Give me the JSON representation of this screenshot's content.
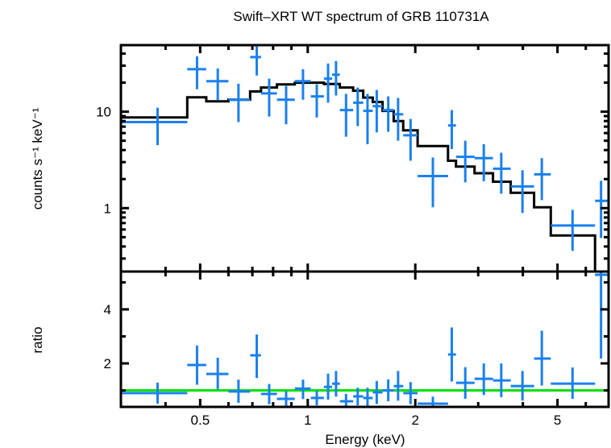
{
  "chart_data": {
    "type": "line",
    "title": "Swift–XRT WT spectrum of GRB 110731A",
    "xlabel": "Energy (keV)",
    "xscale": "log",
    "xlim": [
      0.3,
      6.95
    ],
    "xticks": [
      {
        "value": 0.5,
        "label": "0.5"
      },
      {
        "value": 1,
        "label": "1"
      },
      {
        "value": 2,
        "label": "2"
      },
      {
        "value": 5,
        "label": "5"
      }
    ],
    "colors": {
      "data": "#1a80ee",
      "model": "#000000",
      "unity_line": "#00e000",
      "frame": "#000000"
    },
    "panels": [
      {
        "name": "spectrum",
        "ylabel": "counts s⁻¹ keV⁻¹",
        "yscale": "log",
        "ylim": [
          0.22,
          49
        ],
        "yticks": [
          {
            "value": 1,
            "label": "1"
          },
          {
            "value": 10,
            "label": "10"
          }
        ],
        "data_series": {
          "name": "WT data",
          "points": [
            {
              "e_lo": 0.3,
              "e_hi": 0.46,
              "e": 0.38,
              "y": 7.8,
              "y_lo": 4.5,
              "y_hi": 11.0
            },
            {
              "e_lo": 0.46,
              "e_hi": 0.52,
              "e": 0.49,
              "y": 27.6,
              "y_lo": 17.1,
              "y_hi": 37.5
            },
            {
              "e_lo": 0.52,
              "e_hi": 0.6,
              "e": 0.56,
              "y": 20.7,
              "y_lo": 13.1,
              "y_hi": 28.0
            },
            {
              "e_lo": 0.6,
              "e_hi": 0.69,
              "e": 0.64,
              "y": 13.3,
              "y_lo": 7.8,
              "y_hi": 19.5
            },
            {
              "e_lo": 0.69,
              "e_hi": 0.74,
              "e": 0.72,
              "y": 36.8,
              "y_lo": 23.7,
              "y_hi": 50.0
            },
            {
              "e_lo": 0.74,
              "e_hi": 0.82,
              "e": 0.78,
              "y": 15.5,
              "y_lo": 8.9,
              "y_hi": 22.0
            },
            {
              "e_lo": 0.82,
              "e_hi": 0.92,
              "e": 0.87,
              "y": 13.3,
              "y_lo": 7.4,
              "y_hi": 18.5
            },
            {
              "e_lo": 0.92,
              "e_hi": 1.02,
              "e": 0.97,
              "y": 20.7,
              "y_lo": 13.3,
              "y_hi": 27.6
            },
            {
              "e_lo": 1.02,
              "e_hi": 1.11,
              "e": 1.06,
              "y": 14.4,
              "y_lo": 8.7,
              "y_hi": 19.2
            },
            {
              "e_lo": 1.11,
              "e_hi": 1.17,
              "e": 1.14,
              "y": 22.0,
              "y_lo": 12.4,
              "y_hi": 31.6
            },
            {
              "e_lo": 1.17,
              "e_hi": 1.23,
              "e": 1.2,
              "y": 24.2,
              "y_lo": 14.7,
              "y_hi": 33.5
            },
            {
              "e_lo": 1.23,
              "e_hi": 1.34,
              "e": 1.28,
              "y": 10.4,
              "y_lo": 5.5,
              "y_hi": 15.3
            },
            {
              "e_lo": 1.34,
              "e_hi": 1.43,
              "e": 1.38,
              "y": 12.4,
              "y_lo": 7.1,
              "y_hi": 17.8
            },
            {
              "e_lo": 1.43,
              "e_hi": 1.52,
              "e": 1.47,
              "y": 10.2,
              "y_lo": 4.6,
              "y_hi": 15.3
            },
            {
              "e_lo": 1.52,
              "e_hi": 1.62,
              "e": 1.56,
              "y": 11.4,
              "y_lo": 6.1,
              "y_hi": 16.8
            },
            {
              "e_lo": 1.62,
              "e_hi": 1.74,
              "e": 1.68,
              "y": 10.4,
              "y_lo": 6.2,
              "y_hi": 14.4
            },
            {
              "e_lo": 1.74,
              "e_hi": 1.85,
              "e": 1.79,
              "y": 9.4,
              "y_lo": 5.0,
              "y_hi": 13.9
            },
            {
              "e_lo": 1.85,
              "e_hi": 2.03,
              "e": 1.94,
              "y": 5.7,
              "y_lo": 3.1,
              "y_hi": 8.4
            },
            {
              "e_lo": 2.03,
              "e_hi": 2.47,
              "e": 2.24,
              "y": 2.15,
              "y_lo": 1.02,
              "y_hi": 3.35
            },
            {
              "e_lo": 2.47,
              "e_hi": 2.6,
              "e": 2.53,
              "y": 7.2,
              "y_lo": 4.1,
              "y_hi": 10.4
            },
            {
              "e_lo": 2.6,
              "e_hi": 2.93,
              "e": 2.76,
              "y": 3.4,
              "y_lo": 1.85,
              "y_hi": 5.0
            },
            {
              "e_lo": 2.93,
              "e_hi": 3.3,
              "e": 3.11,
              "y": 3.3,
              "y_lo": 1.9,
              "y_hi": 4.6
            },
            {
              "e_lo": 3.3,
              "e_hi": 3.7,
              "e": 3.48,
              "y": 2.56,
              "y_lo": 1.41,
              "y_hi": 3.75
            },
            {
              "e_lo": 3.7,
              "e_hi": 4.3,
              "e": 3.99,
              "y": 1.68,
              "y_lo": 0.89,
              "y_hi": 2.47
            },
            {
              "e_lo": 4.3,
              "e_hi": 4.79,
              "e": 4.52,
              "y": 2.24,
              "y_lo": 1.21,
              "y_hi": 3.3
            },
            {
              "e_lo": 4.79,
              "e_hi": 6.37,
              "e": 5.51,
              "y": 0.66,
              "y_lo": 0.36,
              "y_hi": 0.96
            },
            {
              "e_lo": 6.37,
              "e_hi": 6.95,
              "e": 6.62,
              "y": 1.19,
              "y_lo": 0.49,
              "y_hi": 1.92
            }
          ]
        },
        "model_series": {
          "name": "model",
          "steps": [
            {
              "e_lo": 0.3,
              "e_hi": 0.46,
              "y": 8.7
            },
            {
              "e_lo": 0.46,
              "e_hi": 0.52,
              "y": 14.1
            },
            {
              "e_lo": 0.52,
              "e_hi": 0.6,
              "y": 12.8
            },
            {
              "e_lo": 0.6,
              "e_hi": 0.69,
              "y": 13.3
            },
            {
              "e_lo": 0.69,
              "e_hi": 0.74,
              "y": 16.2
            },
            {
              "e_lo": 0.74,
              "e_hi": 0.82,
              "y": 17.8
            },
            {
              "e_lo": 0.82,
              "e_hi": 0.92,
              "y": 19.2
            },
            {
              "e_lo": 0.92,
              "e_hi": 1.11,
              "y": 20.0
            },
            {
              "e_lo": 1.11,
              "e_hi": 1.23,
              "y": 19.4
            },
            {
              "e_lo": 1.23,
              "e_hi": 1.34,
              "y": 17.8
            },
            {
              "e_lo": 1.34,
              "e_hi": 1.43,
              "y": 16.5
            },
            {
              "e_lo": 1.43,
              "e_hi": 1.52,
              "y": 14.0
            },
            {
              "e_lo": 1.52,
              "e_hi": 1.62,
              "y": 12.6
            },
            {
              "e_lo": 1.62,
              "e_hi": 1.74,
              "y": 10.2
            },
            {
              "e_lo": 1.74,
              "e_hi": 1.85,
              "y": 8.0
            },
            {
              "e_lo": 1.85,
              "e_hi": 2.03,
              "y": 6.4
            },
            {
              "e_lo": 2.03,
              "e_hi": 2.47,
              "y": 4.4
            },
            {
              "e_lo": 2.47,
              "e_hi": 2.6,
              "y": 3.1
            },
            {
              "e_lo": 2.6,
              "e_hi": 2.93,
              "y": 2.7
            },
            {
              "e_lo": 2.93,
              "e_hi": 3.3,
              "y": 2.3
            },
            {
              "e_lo": 3.3,
              "e_hi": 3.7,
              "y": 1.88
            },
            {
              "e_lo": 3.7,
              "e_hi": 4.3,
              "y": 1.44
            },
            {
              "e_lo": 4.3,
              "e_hi": 4.79,
              "y": 1.02
            },
            {
              "e_lo": 4.79,
              "e_hi": 6.37,
              "y": 0.52
            },
            {
              "e_lo": 6.37,
              "e_hi": 6.95,
              "y": 0.0
            }
          ]
        }
      },
      {
        "name": "ratio",
        "ylabel": "ratio",
        "yscale": "linear",
        "ylim": [
          0.39,
          5.4
        ],
        "yticks": [
          {
            "value": 2,
            "label": "2"
          },
          {
            "value": 4,
            "label": "4"
          }
        ],
        "minor_yticks": [
          1,
          3,
          5
        ],
        "unity_line": 1.0,
        "data_series": {
          "name": "data/model",
          "points": [
            {
              "e_lo": 0.3,
              "e_hi": 0.46,
              "e": 0.38,
              "y": 0.9,
              "y_lo": 0.51,
              "y_hi": 1.29
            },
            {
              "e_lo": 0.46,
              "e_hi": 0.52,
              "e": 0.49,
              "y": 1.94,
              "y_lo": 1.21,
              "y_hi": 2.66
            },
            {
              "e_lo": 0.52,
              "e_hi": 0.6,
              "e": 0.56,
              "y": 1.61,
              "y_lo": 1.03,
              "y_hi": 2.21
            },
            {
              "e_lo": 0.6,
              "e_hi": 0.69,
              "e": 0.64,
              "y": 0.96,
              "y_lo": 0.54,
              "y_hi": 1.4
            },
            {
              "e_lo": 0.69,
              "e_hi": 0.74,
              "e": 0.72,
              "y": 2.3,
              "y_lo": 1.46,
              "y_hi": 3.07
            },
            {
              "e_lo": 0.74,
              "e_hi": 0.82,
              "e": 0.78,
              "y": 0.87,
              "y_lo": 0.49,
              "y_hi": 1.24
            },
            {
              "e_lo": 0.82,
              "e_hi": 0.92,
              "e": 0.87,
              "y": 0.69,
              "y_lo": 0.39,
              "y_hi": 0.97
            },
            {
              "e_lo": 0.92,
              "e_hi": 1.02,
              "e": 0.97,
              "y": 1.07,
              "y_lo": 0.68,
              "y_hi": 1.4
            },
            {
              "e_lo": 1.02,
              "e_hi": 1.11,
              "e": 1.06,
              "y": 0.72,
              "y_lo": 0.45,
              "y_hi": 0.98
            },
            {
              "e_lo": 1.11,
              "e_hi": 1.17,
              "e": 1.14,
              "y": 1.13,
              "y_lo": 0.66,
              "y_hi": 1.62
            },
            {
              "e_lo": 1.17,
              "e_hi": 1.23,
              "e": 1.2,
              "y": 1.25,
              "y_lo": 0.77,
              "y_hi": 1.72
            },
            {
              "e_lo": 1.23,
              "e_hi": 1.34,
              "e": 1.28,
              "y": 0.6,
              "y_lo": 0.32,
              "y_hi": 0.87
            },
            {
              "e_lo": 1.34,
              "e_hi": 1.43,
              "e": 1.38,
              "y": 0.78,
              "y_lo": 0.45,
              "y_hi": 1.1
            },
            {
              "e_lo": 1.43,
              "e_hi": 1.52,
              "e": 1.47,
              "y": 0.72,
              "y_lo": 0.33,
              "y_hi": 1.1
            },
            {
              "e_lo": 1.52,
              "e_hi": 1.62,
              "e": 1.56,
              "y": 0.93,
              "y_lo": 0.5,
              "y_hi": 1.35
            },
            {
              "e_lo": 1.62,
              "e_hi": 1.74,
              "e": 1.68,
              "y": 1.0,
              "y_lo": 0.6,
              "y_hi": 1.41
            },
            {
              "e_lo": 1.74,
              "e_hi": 1.85,
              "e": 1.79,
              "y": 1.16,
              "y_lo": 0.62,
              "y_hi": 1.72
            },
            {
              "e_lo": 1.85,
              "e_hi": 2.03,
              "e": 1.94,
              "y": 0.9,
              "y_lo": 0.49,
              "y_hi": 1.31
            },
            {
              "e_lo": 2.03,
              "e_hi": 2.47,
              "e": 2.24,
              "y": 0.51,
              "y_lo": 0.24,
              "y_hi": 0.77
            },
            {
              "e_lo": 2.47,
              "e_hi": 2.6,
              "e": 2.53,
              "y": 2.33,
              "y_lo": 1.33,
              "y_hi": 3.33
            },
            {
              "e_lo": 2.6,
              "e_hi": 2.93,
              "e": 2.76,
              "y": 1.28,
              "y_lo": 0.69,
              "y_hi": 1.86
            },
            {
              "e_lo": 2.93,
              "e_hi": 3.3,
              "e": 3.11,
              "y": 1.43,
              "y_lo": 0.83,
              "y_hi": 2.0
            },
            {
              "e_lo": 3.3,
              "e_hi": 3.7,
              "e": 3.48,
              "y": 1.37,
              "y_lo": 0.75,
              "y_hi": 2.0
            },
            {
              "e_lo": 3.7,
              "e_hi": 4.3,
              "e": 3.99,
              "y": 1.16,
              "y_lo": 0.62,
              "y_hi": 1.72
            },
            {
              "e_lo": 4.3,
              "e_hi": 4.79,
              "e": 4.52,
              "y": 2.18,
              "y_lo": 1.18,
              "y_hi": 3.21
            },
            {
              "e_lo": 4.79,
              "e_hi": 6.37,
              "e": 5.51,
              "y": 1.25,
              "y_lo": 0.69,
              "y_hi": 1.85
            },
            {
              "e_lo": 6.37,
              "e_hi": 6.95,
              "e": 6.62,
              "y": 5.28,
              "y_lo": 2.18,
              "y_hi": 5.4
            }
          ]
        }
      }
    ]
  }
}
